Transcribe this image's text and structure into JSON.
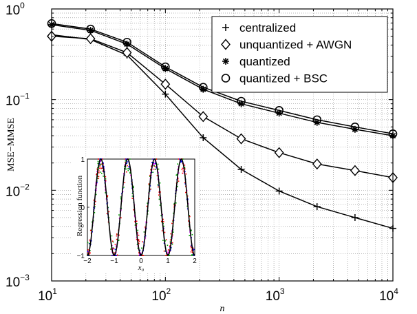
{
  "chart_data": {
    "type": "line",
    "xscale": "log",
    "yscale": "log",
    "xlim": [
      10,
      10000
    ],
    "ylim": [
      0.001,
      1
    ],
    "xlabel": "n",
    "ylabel": "MSE−MMSE",
    "grid": true,
    "legend_position": "top-right",
    "x_ticks": [
      {
        "base": "10",
        "exp": "1",
        "value": 10
      },
      {
        "base": "10",
        "exp": "2",
        "value": 100
      },
      {
        "base": "10",
        "exp": "3",
        "value": 1000
      },
      {
        "base": "10",
        "exp": "4",
        "value": 10000
      }
    ],
    "y_ticks": [
      {
        "base": "10",
        "exp": "0",
        "value": 1
      },
      {
        "base": "10",
        "exp": "−1",
        "value": 0.1
      },
      {
        "base": "10",
        "exp": "−2",
        "value": 0.01
      },
      {
        "base": "10",
        "exp": "−3",
        "value": 0.001
      }
    ],
    "series": [
      {
        "name": "centralized",
        "marker": "plus",
        "x": [
          10,
          22,
          46,
          100,
          215,
          464,
          1000,
          2154,
          4642,
          10000
        ],
        "y": [
          0.52,
          0.46,
          0.31,
          0.115,
          0.038,
          0.017,
          0.0098,
          0.0066,
          0.005,
          0.0038
        ]
      },
      {
        "name": "unquantized + AWGN",
        "marker": "diamond",
        "x": [
          10,
          22,
          46,
          100,
          215,
          464,
          1000,
          2154,
          4642,
          10000
        ],
        "y": [
          0.5,
          0.47,
          0.33,
          0.148,
          0.065,
          0.037,
          0.026,
          0.0195,
          0.0165,
          0.0138
        ]
      },
      {
        "name": "quantized",
        "marker": "asterisk",
        "x": [
          10,
          22,
          46,
          100,
          215,
          464,
          1000,
          2154,
          4642,
          10000
        ],
        "y": [
          0.67,
          0.58,
          0.41,
          0.22,
          0.13,
          0.09,
          0.071,
          0.056,
          0.047,
          0.04
        ]
      },
      {
        "name": "quantized + BSC",
        "marker": "circle",
        "x": [
          10,
          22,
          46,
          100,
          215,
          464,
          1000,
          2154,
          4642,
          10000
        ],
        "y": [
          0.69,
          0.6,
          0.43,
          0.23,
          0.137,
          0.096,
          0.076,
          0.06,
          0.05,
          0.042
        ]
      }
    ],
    "inset": {
      "type": "scatter",
      "xlabel": "x₀",
      "ylabel": "Regression function",
      "xlim": [
        -2,
        2
      ],
      "ylim": [
        -1,
        1
      ],
      "x_tick_labels": [
        "−2",
        "−1",
        "0",
        "1",
        "2"
      ],
      "y_tick_labels": [
        "1",
        "0",
        "−1"
      ],
      "colors": [
        "#000000",
        "#ff00ff",
        "#00a000",
        "#ff0000",
        "#0000ff"
      ]
    }
  }
}
